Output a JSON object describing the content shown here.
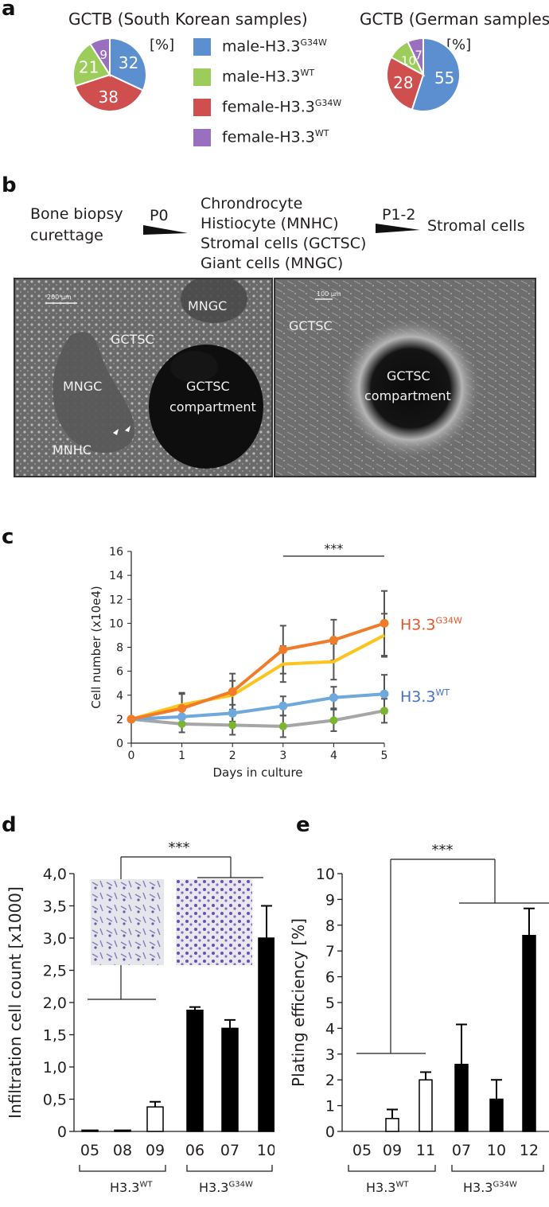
{
  "panel_a": {
    "letter": "a",
    "pie1": {
      "title": "GCTB (South Korean samples)",
      "unit": "[%]"
    },
    "pie2": {
      "title": "GCTB (German samples)",
      "unit": "[%]"
    },
    "legend": [
      {
        "base": "male-H3.3",
        "sup": "G34W",
        "color": "#5b8fcf"
      },
      {
        "base": "male-H3.3",
        "sup": "WT",
        "color": "#9ccc5a"
      },
      {
        "base": "female-H3.3",
        "sup": "G34W",
        "color": "#cf4e4e"
      },
      {
        "base": "female-H3.3",
        "sup": "WT",
        "color": "#9b6fc0"
      }
    ]
  },
  "panel_b": {
    "letter": "b",
    "step1": "Bone biopsy",
    "step1b": "curettage",
    "arrow1": "P0",
    "step2_lines": [
      "Chrondrocyte",
      "Histiocyte (MNHC)",
      "Stromal cells (GCTSC)",
      "Giant cells (MNGC)"
    ],
    "arrow2": "P1-2",
    "step3": "Stromal cells",
    "image1": {
      "scale": "200 µm",
      "labels": {
        "gctsc": "GCTSC",
        "mngc_top": "MNGC",
        "mngc_left": "MNGC",
        "mnhc": "MNHC",
        "compartment1": "GCTSC",
        "compartment2": "compartment"
      }
    },
    "image2": {
      "scale": "100 µm",
      "labels": {
        "gctsc": "GCTSC",
        "compartment1": "GCTSC",
        "compartment2": "compartment"
      }
    }
  },
  "panel_c": {
    "letter": "c"
  },
  "panel_d": {
    "letter": "d",
    "group1": "H3.3",
    "group1_sup": "WT",
    "group2": "H3.3",
    "group2_sup": "G34W"
  },
  "panel_e": {
    "letter": "e",
    "group1": "H3.3",
    "group1_sup": "WT",
    "group2": "H3.3",
    "group2_sup": "G34W"
  },
  "chart_data": [
    {
      "id": "pie_korean",
      "type": "pie",
      "title": "GCTB (South Korean samples)",
      "unit": "[%]",
      "slices": [
        {
          "label": "male-H3.3G34W",
          "value": 32,
          "color": "#5b8fcf"
        },
        {
          "label": "female-H3.3G34W",
          "value": 38,
          "color": "#cf4e4e"
        },
        {
          "label": "male-H3.3WT",
          "value": 21,
          "color": "#9ccc5a"
        },
        {
          "label": "female-H3.3WT",
          "value": 9,
          "color": "#9b6fc0"
        }
      ]
    },
    {
      "id": "pie_german",
      "type": "pie",
      "title": "GCTB (German samples)",
      "unit": "[%]",
      "slices": [
        {
          "label": "male-H3.3G34W",
          "value": 55,
          "color": "#5b8fcf"
        },
        {
          "label": "female-H3.3G34W",
          "value": 28,
          "color": "#cf4e4e"
        },
        {
          "label": "male-H3.3WT",
          "value": 10,
          "color": "#9ccc5a"
        },
        {
          "label": "female-H3.3WT",
          "value": 7,
          "color": "#9b6fc0"
        }
      ]
    },
    {
      "id": "growth",
      "type": "line",
      "xlabel": "Days in culture",
      "ylabel": "Cell number (x10e4)",
      "x": [
        0,
        1,
        2,
        3,
        4,
        5
      ],
      "xlim": [
        0,
        5
      ],
      "ylim": [
        0,
        16
      ],
      "yticks": [
        0,
        2,
        4,
        6,
        8,
        10,
        12,
        14,
        16
      ],
      "significance": "***",
      "series": [
        {
          "color": "#f07c2a",
          "marker": true,
          "values": [
            2.0,
            2.9,
            4.3,
            7.8,
            8.6,
            10.0
          ],
          "err": [
            0,
            1.2,
            1.5,
            2.0,
            1.7,
            2.7
          ]
        },
        {
          "color": "#fcc41d",
          "marker": false,
          "values": [
            2.0,
            3.2,
            4.0,
            6.6,
            6.8,
            9.0
          ],
          "err": [
            0,
            1.0,
            1.2,
            1.5,
            1.5,
            1.8
          ]
        },
        {
          "color": "#6fa8dc",
          "marker": true,
          "values": [
            2.0,
            2.2,
            2.5,
            3.1,
            3.8,
            4.1
          ],
          "err": [
            0,
            0.6,
            0.7,
            0.8,
            0.9,
            1.6
          ]
        },
        {
          "color": "#a6a6a6",
          "marker": false,
          "values": [
            2.0,
            1.6,
            1.5,
            1.4,
            1.9,
            2.7
          ],
          "err": [
            0,
            0.7,
            0.8,
            0.9,
            0.9,
            1.0
          ],
          "point_color": "#7ab530"
        }
      ],
      "annotations": [
        {
          "base": "H3.3",
          "sup": "G34W",
          "color": "#e8542a",
          "y": 10
        },
        {
          "base": "H3.3",
          "sup": "WT",
          "color": "#4472c4",
          "y": 4
        }
      ]
    },
    {
      "id": "infiltration",
      "type": "bar",
      "ylabel": "Infiltration cell count [x1000]",
      "ylim": [
        0,
        4.0
      ],
      "yticks": [
        "0",
        "0,5",
        "1,0",
        "1,5",
        "2,0",
        "2,5",
        "3,0",
        "3,5",
        "4,0"
      ],
      "categories": [
        "05",
        "08",
        "09",
        "06",
        "07",
        "10"
      ],
      "values": [
        0.02,
        0.02,
        0.38,
        1.88,
        1.6,
        3.0
      ],
      "err": [
        0.0,
        0.0,
        0.08,
        0.05,
        0.13,
        0.5
      ],
      "filled": [
        true,
        true,
        false,
        true,
        true,
        true
      ],
      "significance": "***"
    },
    {
      "id": "plating",
      "type": "bar",
      "ylabel": "Plating efficiency [%]",
      "ylim": [
        0,
        10
      ],
      "yticks": [
        "0",
        "1",
        "2",
        "3",
        "4",
        "5",
        "6",
        "7",
        "8",
        "9",
        "10"
      ],
      "categories": [
        "05",
        "09",
        "11",
        "07",
        "10",
        "12"
      ],
      "values": [
        0,
        0.5,
        2.0,
        2.6,
        1.25,
        7.6
      ],
      "err": [
        0,
        0.35,
        0.3,
        1.55,
        0.75,
        1.05
      ],
      "filled": [
        false,
        false,
        false,
        true,
        true,
        true
      ],
      "significance": "***"
    }
  ]
}
